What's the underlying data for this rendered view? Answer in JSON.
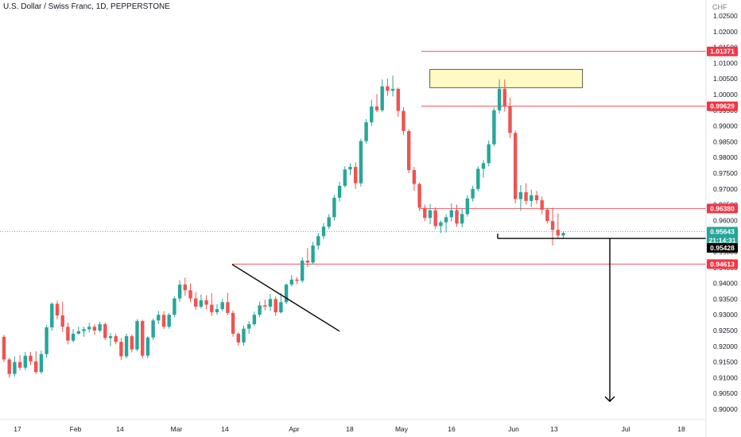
{
  "header": {
    "title": "U.S. Dollar / Swiss Franc, 1D, PEPPERSTONE",
    "currency": "CHF"
  },
  "chart_data": {
    "type": "candlestick",
    "ylim": [
      0.8985,
      1.0265
    ],
    "y_ticks": [
      "1.02500",
      "1.02000",
      "1.01500",
      "1.01000",
      "1.00500",
      "1.00000",
      "0.99500",
      "0.99000",
      "0.98500",
      "0.98000",
      "0.97500",
      "0.97000",
      "0.96500",
      "0.96000",
      "0.95500",
      "0.95000",
      "0.94500",
      "0.94000",
      "0.93500",
      "0.93000",
      "0.92500",
      "0.92000",
      "0.91500",
      "0.91000",
      "0.90500",
      "0.90000"
    ],
    "x_ticks": [
      "17",
      "Feb",
      "14",
      "Mar",
      "14",
      "Apr",
      "18",
      "May",
      "16",
      "Jun",
      "13",
      "Jul",
      "18"
    ],
    "candles": [
      [
        0.923,
        0.9236,
        0.915,
        0.9158
      ],
      [
        0.9158,
        0.9164,
        0.91,
        0.9112
      ],
      [
        0.9112,
        0.9168,
        0.9104,
        0.915
      ],
      [
        0.915,
        0.9172,
        0.9124,
        0.9132
      ],
      [
        0.9132,
        0.9182,
        0.9124,
        0.917
      ],
      [
        0.917,
        0.9182,
        0.914,
        0.9152
      ],
      [
        0.9152,
        0.9184,
        0.9112,
        0.9118
      ],
      [
        0.9118,
        0.9186,
        0.9112,
        0.9175
      ],
      [
        0.9175,
        0.9268,
        0.9164,
        0.926
      ],
      [
        0.926,
        0.934,
        0.925,
        0.9335
      ],
      [
        0.9335,
        0.9345,
        0.9285,
        0.9298
      ],
      [
        0.9298,
        0.9342,
        0.9245,
        0.9262
      ],
      [
        0.9262,
        0.9275,
        0.9206,
        0.9218
      ],
      [
        0.9218,
        0.9255,
        0.9212,
        0.924
      ],
      [
        0.924,
        0.9262,
        0.9236,
        0.9248
      ],
      [
        0.9248,
        0.9262,
        0.923,
        0.9254
      ],
      [
        0.9254,
        0.9274,
        0.9244,
        0.9262
      ],
      [
        0.9262,
        0.927,
        0.9236,
        0.925
      ],
      [
        0.925,
        0.9278,
        0.9244,
        0.927
      ],
      [
        0.927,
        0.9276,
        0.922,
        0.9226
      ],
      [
        0.9226,
        0.9242,
        0.92,
        0.9232
      ],
      [
        0.9232,
        0.924,
        0.9206,
        0.9214
      ],
      [
        0.9214,
        0.9226,
        0.9156,
        0.9168
      ],
      [
        0.9168,
        0.924,
        0.9162,
        0.9232
      ],
      [
        0.9232,
        0.9238,
        0.918,
        0.919
      ],
      [
        0.919,
        0.9286,
        0.9184,
        0.928
      ],
      [
        0.928,
        0.9284,
        0.9162,
        0.917
      ],
      [
        0.917,
        0.9232,
        0.9162,
        0.9228
      ],
      [
        0.9228,
        0.9288,
        0.922,
        0.9282
      ],
      [
        0.9282,
        0.9312,
        0.927,
        0.93
      ],
      [
        0.93,
        0.9312,
        0.9256,
        0.9262
      ],
      [
        0.9262,
        0.9306,
        0.9256,
        0.93
      ],
      [
        0.93,
        0.9358,
        0.9292,
        0.9352
      ],
      [
        0.9352,
        0.941,
        0.934,
        0.9396
      ],
      [
        0.9396,
        0.9418,
        0.936,
        0.9378
      ],
      [
        0.9378,
        0.94,
        0.934,
        0.9352
      ],
      [
        0.9352,
        0.9372,
        0.9316,
        0.9326
      ],
      [
        0.9326,
        0.9364,
        0.932,
        0.9346
      ],
      [
        0.9346,
        0.9362,
        0.9318,
        0.9332
      ],
      [
        0.9332,
        0.9368,
        0.9296,
        0.9308
      ],
      [
        0.9308,
        0.9334,
        0.93,
        0.9318
      ],
      [
        0.9318,
        0.935,
        0.9312,
        0.934
      ],
      [
        0.934,
        0.937,
        0.93,
        0.9306
      ],
      [
        0.9306,
        0.9314,
        0.923,
        0.924
      ],
      [
        0.924,
        0.9244,
        0.9202,
        0.9212
      ],
      [
        0.9212,
        0.9266,
        0.9202,
        0.9256
      ],
      [
        0.9256,
        0.928,
        0.924,
        0.927
      ],
      [
        0.927,
        0.931,
        0.9264,
        0.93
      ],
      [
        0.93,
        0.9342,
        0.9292,
        0.933
      ],
      [
        0.933,
        0.9348,
        0.9314,
        0.9326
      ],
      [
        0.9326,
        0.9366,
        0.9312,
        0.935
      ],
      [
        0.935,
        0.9358,
        0.9296,
        0.9308
      ],
      [
        0.9308,
        0.937,
        0.9304,
        0.934
      ],
      [
        0.934,
        0.94,
        0.9334,
        0.9396
      ],
      [
        0.9396,
        0.9426,
        0.939,
        0.9412
      ],
      [
        0.9412,
        0.942,
        0.9398,
        0.9408
      ],
      [
        0.9408,
        0.9482,
        0.9402,
        0.9472
      ],
      [
        0.9472,
        0.9512,
        0.9452,
        0.9466
      ],
      [
        0.9466,
        0.9532,
        0.946,
        0.952
      ],
      [
        0.952,
        0.956,
        0.9508,
        0.955
      ],
      [
        0.955,
        0.9592,
        0.954,
        0.958
      ],
      [
        0.958,
        0.962,
        0.9572,
        0.961
      ],
      [
        0.961,
        0.968,
        0.96,
        0.9672
      ],
      [
        0.9672,
        0.9722,
        0.966,
        0.971
      ],
      [
        0.971,
        0.9772,
        0.9704,
        0.9762
      ],
      [
        0.9762,
        0.9782,
        0.9744,
        0.977
      ],
      [
        0.977,
        0.9784,
        0.97,
        0.9718
      ],
      [
        0.9718,
        0.986,
        0.9708,
        0.9852
      ],
      [
        0.9852,
        0.9922,
        0.9844,
        0.9912
      ],
      [
        0.9912,
        0.9984,
        0.99,
        0.9962
      ],
      [
        0.9962,
        1.0002,
        0.9944,
        0.995
      ],
      [
        0.995,
        1.0048,
        0.9944,
        1.0026
      ],
      [
        1.0026,
        1.005,
        0.9996,
        1.0012
      ],
      [
        1.0012,
        1.006,
        0.9994,
        1.0018
      ],
      [
        1.0018,
        1.0022,
        0.993,
        0.9948
      ],
      [
        0.9948,
        0.996,
        0.9872,
        0.9884
      ],
      [
        0.9884,
        0.989,
        0.975,
        0.976
      ],
      [
        0.976,
        0.977,
        0.9694,
        0.9716
      ],
      [
        0.9716,
        0.972,
        0.963,
        0.964
      ],
      [
        0.964,
        0.965,
        0.9598,
        0.9608
      ],
      [
        0.9608,
        0.9652,
        0.9588,
        0.9632
      ],
      [
        0.9632,
        0.9642,
        0.9572,
        0.9582
      ],
      [
        0.9582,
        0.96,
        0.956,
        0.9594
      ],
      [
        0.9594,
        0.962,
        0.9562,
        0.961
      ],
      [
        0.961,
        0.9654,
        0.9596,
        0.9632
      ],
      [
        0.9632,
        0.965,
        0.958,
        0.959
      ],
      [
        0.959,
        0.9638,
        0.9578,
        0.962
      ],
      [
        0.962,
        0.968,
        0.9612,
        0.967
      ],
      [
        0.967,
        0.971,
        0.966,
        0.97
      ],
      [
        0.97,
        0.9772,
        0.9692,
        0.9764
      ],
      [
        0.9764,
        0.9792,
        0.9736,
        0.9782
      ],
      [
        0.9782,
        0.9854,
        0.9772,
        0.9842
      ],
      [
        0.9842,
        0.996,
        0.9836,
        0.995
      ],
      [
        0.995,
        1.0048,
        0.994,
        1.0018
      ],
      [
        1.0018,
        1.0048,
        0.9946,
        0.9962
      ],
      [
        0.9962,
        0.999,
        0.9862,
        0.9878
      ],
      [
        0.9878,
        0.9886,
        0.9654,
        0.9668
      ],
      [
        0.9668,
        0.9712,
        0.963,
        0.969
      ],
      [
        0.969,
        0.9718,
        0.965,
        0.9662
      ],
      [
        0.9662,
        0.9698,
        0.9642,
        0.968
      ],
      [
        0.968,
        0.9694,
        0.9652,
        0.9664
      ],
      [
        0.9664,
        0.9676,
        0.962,
        0.9634
      ],
      [
        0.9634,
        0.964,
        0.959,
        0.9598
      ],
      [
        0.9598,
        0.964,
        0.952,
        0.957
      ],
      [
        0.957,
        0.9622,
        0.9544,
        0.9552
      ],
      [
        0.9552,
        0.9566,
        0.9542,
        0.956
      ]
    ],
    "colors": {
      "up": "#26a69a",
      "down": "#ef5350",
      "level": "#f23645",
      "current": "#26a69a",
      "box": "#fff9c4",
      "box_border": "#333333"
    },
    "levels": [
      {
        "price": 1.01371,
        "label": "1.01371"
      },
      {
        "price": 0.99629,
        "label": "0.99629"
      },
      {
        "price": 0.9638,
        "label": "0.96380"
      },
      {
        "price": 0.94613,
        "label": "0.94613"
      }
    ],
    "neckline": {
      "price": 0.95428,
      "label": "0.95428"
    },
    "current": {
      "price": 0.95643,
      "label": "0.95643",
      "countdown": "21:14:31"
    },
    "resistance_box": {
      "from_bar": 71,
      "to_bar": 93,
      "low": 1.0022,
      "high": 1.008
    },
    "trendline": {
      "from_bar": 39,
      "from_price": 0.946,
      "to_bar": 56,
      "to_price": 0.9248
    },
    "target_arrow": {
      "at_bar": 107,
      "from_price": 0.95428,
      "to_price": 0.9025
    }
  }
}
